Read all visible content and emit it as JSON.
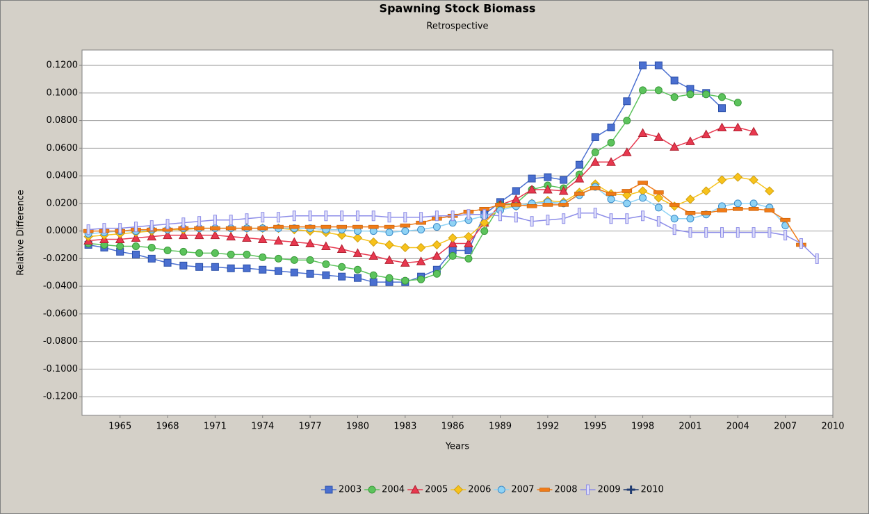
{
  "chart_data": {
    "type": "line",
    "title": "Spawning Stock Biomass",
    "subtitle": "Retrospective",
    "xlabel": "Years",
    "ylabel": "Relative Difference",
    "x": [
      1963,
      1964,
      1965,
      1966,
      1967,
      1968,
      1969,
      1970,
      1971,
      1972,
      1973,
      1974,
      1975,
      1976,
      1977,
      1978,
      1979,
      1980,
      1981,
      1982,
      1983,
      1984,
      1985,
      1986,
      1987,
      1988,
      1989,
      1990,
      1991,
      1992,
      1993,
      1994,
      1995,
      1996,
      1997,
      1998,
      1999,
      2000,
      2001,
      2002,
      2003,
      2004,
      2005,
      2006,
      2007,
      2008,
      2009
    ],
    "xlim": [
      1962.6,
      2010
    ],
    "xticks": [
      1965,
      1968,
      1971,
      1974,
      1977,
      1980,
      1983,
      1986,
      1989,
      1992,
      1995,
      1998,
      2001,
      2004,
      2007,
      2010
    ],
    "ylim": [
      -0.1335,
      0.1311
    ],
    "yticks": [
      {
        "value": 0.12,
        "label": "0.1200"
      },
      {
        "value": 0.1,
        "label": "0.1000"
      },
      {
        "value": 0.08,
        "label": "0.0800"
      },
      {
        "value": 0.06,
        "label": "0.0600"
      },
      {
        "value": 0.04,
        "label": "0.0400"
      },
      {
        "value": 0.02,
        "label": "0.0200"
      },
      {
        "value": 0,
        "label": "0.0000"
      },
      {
        "value": -0.02,
        "label": "-0.0200"
      },
      {
        "value": -0.04,
        "label": "-0.0400"
      },
      {
        "value": -0.06,
        "label": "-0.0600"
      },
      {
        "value": -0.08,
        "label": "-0.0800"
      },
      {
        "value": -0.1,
        "label": "-0.1000"
      },
      {
        "value": -0.12,
        "label": "-0.1200"
      }
    ],
    "grid": true,
    "legend": "bottom",
    "series": [
      {
        "name": "2003",
        "color": "#4a6fd0",
        "marker": "square",
        "values": [
          -0.01,
          -0.012,
          -0.015,
          -0.017,
          -0.02,
          -0.023,
          -0.025,
          -0.026,
          -0.026,
          -0.027,
          -0.027,
          -0.028,
          -0.029,
          -0.03,
          -0.031,
          -0.032,
          -0.033,
          -0.034,
          -0.037,
          -0.037,
          -0.037,
          -0.033,
          -0.028,
          -0.014,
          -0.014,
          0.012,
          0.021,
          0.029,
          0.038,
          0.039,
          0.037,
          0.048,
          0.068,
          0.075,
          0.094,
          0.12,
          0.12,
          0.109,
          0.103,
          0.1,
          0.089,
          null,
          null,
          null,
          null,
          null,
          null
        ]
      },
      {
        "name": "2004",
        "color": "#5cc35c",
        "marker": "circle",
        "values": [
          -0.009,
          -0.01,
          -0.011,
          -0.011,
          -0.012,
          -0.014,
          -0.015,
          -0.016,
          -0.016,
          -0.017,
          -0.017,
          -0.019,
          -0.02,
          -0.021,
          -0.021,
          -0.024,
          -0.026,
          -0.028,
          -0.032,
          -0.034,
          -0.036,
          -0.035,
          -0.031,
          -0.018,
          -0.02,
          0.0,
          0.019,
          0.02,
          0.03,
          0.033,
          0.031,
          0.041,
          0.057,
          0.064,
          0.08,
          0.102,
          0.102,
          0.097,
          0.099,
          0.099,
          0.097,
          0.093,
          null,
          null,
          null,
          null,
          null
        ]
      },
      {
        "name": "2005",
        "color": "#e8384f",
        "marker": "triangle",
        "values": [
          -0.007,
          -0.006,
          -0.006,
          -0.005,
          -0.004,
          -0.003,
          -0.003,
          -0.003,
          -0.003,
          -0.004,
          -0.005,
          -0.006,
          -0.007,
          -0.008,
          -0.009,
          -0.011,
          -0.013,
          -0.016,
          -0.018,
          -0.021,
          -0.023,
          -0.022,
          -0.018,
          -0.009,
          -0.009,
          0.006,
          0.019,
          0.023,
          0.03,
          0.03,
          0.029,
          0.038,
          0.05,
          0.05,
          0.057,
          0.071,
          0.068,
          0.061,
          0.065,
          0.07,
          0.075,
          0.075,
          0.072,
          null,
          null,
          null,
          null
        ]
      },
      {
        "name": "2006",
        "color": "#f7c21b",
        "marker": "diamond",
        "values": [
          -0.004,
          -0.003,
          -0.002,
          -0.001,
          0.0,
          0.001,
          0.001,
          0.002,
          0.002,
          0.002,
          0.002,
          0.002,
          0.002,
          0.001,
          0.0,
          -0.001,
          -0.003,
          -0.005,
          -0.008,
          -0.01,
          -0.012,
          -0.012,
          -0.01,
          -0.005,
          -0.004,
          0.006,
          0.017,
          0.018,
          0.02,
          0.022,
          0.021,
          0.028,
          0.034,
          0.027,
          0.026,
          0.029,
          0.024,
          0.018,
          0.023,
          0.029,
          0.037,
          0.039,
          0.037,
          0.029,
          null,
          null,
          null
        ]
      },
      {
        "name": "2007",
        "color": "#8fd3f5",
        "marker": "ring",
        "values": [
          -0.002,
          -0.001,
          0.0,
          0.0,
          0.001,
          0.001,
          0.002,
          0.002,
          0.002,
          0.002,
          0.002,
          0.002,
          0.002,
          0.002,
          0.002,
          0.001,
          0.001,
          0.0,
          0.0,
          -0.001,
          0.0,
          0.001,
          0.003,
          0.006,
          0.008,
          0.011,
          0.015,
          0.018,
          0.02,
          0.021,
          0.02,
          0.026,
          0.032,
          0.023,
          0.02,
          0.024,
          0.017,
          0.009,
          0.009,
          0.012,
          0.018,
          0.02,
          0.02,
          0.017,
          0.004,
          null,
          null
        ]
      },
      {
        "name": "2008",
        "color": "#f07b18",
        "marker": "dash",
        "values": [
          0.0,
          0.0,
          0.0,
          0.001,
          0.001,
          0.001,
          0.002,
          0.002,
          0.002,
          0.002,
          0.002,
          0.002,
          0.003,
          0.003,
          0.003,
          0.003,
          0.003,
          0.003,
          0.003,
          0.003,
          0.004,
          0.006,
          0.009,
          0.011,
          0.014,
          0.016,
          0.019,
          0.019,
          0.018,
          0.019,
          0.019,
          0.027,
          0.031,
          0.027,
          0.029,
          0.035,
          0.028,
          0.019,
          0.013,
          0.013,
          0.015,
          0.016,
          0.016,
          0.015,
          0.008,
          -0.01,
          null
        ]
      },
      {
        "name": "2009",
        "color": "#8c8ce8",
        "marker": "bar",
        "values": [
          0.001,
          0.002,
          0.002,
          0.003,
          0.004,
          0.005,
          0.006,
          0.007,
          0.008,
          0.008,
          0.009,
          0.01,
          0.01,
          0.011,
          0.011,
          0.011,
          0.011,
          0.011,
          0.011,
          0.01,
          0.01,
          0.01,
          0.011,
          0.011,
          0.012,
          0.012,
          0.011,
          0.01,
          0.007,
          0.008,
          0.009,
          0.013,
          0.013,
          0.009,
          0.009,
          0.011,
          0.007,
          0.001,
          -0.001,
          -0.001,
          -0.001,
          -0.001,
          -0.001,
          -0.001,
          -0.003,
          -0.009,
          -0.02
        ]
      },
      {
        "name": "2010",
        "color": "#1f3a70",
        "marker": "cross",
        "values": [
          null,
          null,
          null,
          null,
          null,
          null,
          null,
          null,
          null,
          null,
          null,
          null,
          null,
          null,
          null,
          null,
          null,
          null,
          null,
          null,
          null,
          null,
          null,
          null,
          null,
          null,
          null,
          null,
          null,
          null,
          null,
          null,
          null,
          null,
          null,
          null,
          null,
          null,
          null,
          null,
          null,
          null,
          null,
          null,
          null,
          null,
          null
        ]
      }
    ]
  }
}
